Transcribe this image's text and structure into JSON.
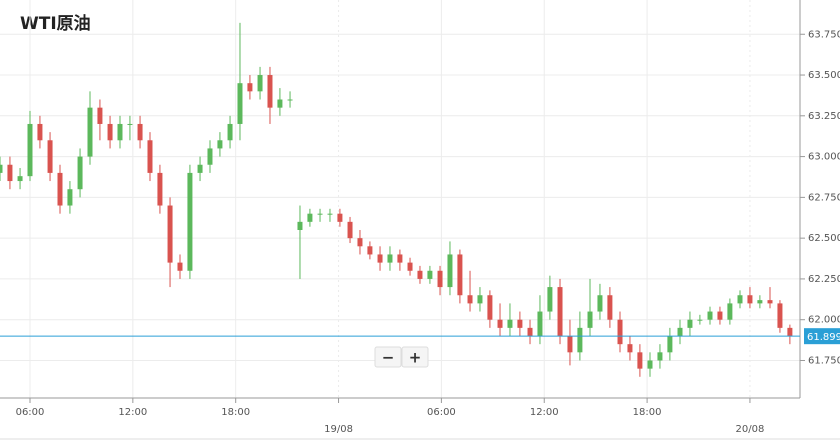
{
  "chart_data": {
    "type": "candlestick",
    "title": "WTI原油",
    "x": [
      4.25,
      4.83,
      5.42,
      6.0,
      6.58,
      7.17,
      7.75,
      8.33,
      8.92,
      9.5,
      10.08,
      10.67,
      11.25,
      11.83,
      12.42,
      13.0,
      13.58,
      14.17,
      14.75,
      15.33,
      15.92,
      16.5,
      17.08,
      17.67,
      18.25,
      18.83,
      19.42,
      20.0,
      20.58,
      21.17,
      21.75,
      22.33,
      22.92,
      23.5,
      24.08,
      24.67,
      25.25,
      25.83,
      26.42,
      27.0,
      27.58,
      28.17,
      28.75,
      29.33,
      29.92,
      30.5,
      31.08,
      31.67,
      32.25,
      32.83,
      33.42,
      34.0,
      34.58,
      35.17,
      35.75,
      36.33,
      36.92,
      37.5,
      38.08,
      38.67,
      39.25,
      39.83,
      40.42,
      41.0,
      41.58,
      42.17,
      42.75,
      43.33,
      43.92,
      44.5,
      45.08,
      45.67,
      46.25,
      46.83,
      47.42,
      48.0,
      48.58,
      49.17,
      49.75,
      50.33
    ],
    "open": [
      62.9,
      62.95,
      62.85,
      62.88,
      63.2,
      63.1,
      62.9,
      62.7,
      62.8,
      63.0,
      63.3,
      63.2,
      63.1,
      63.2,
      63.2,
      63.1,
      62.9,
      62.7,
      62.35,
      62.3,
      62.9,
      62.95,
      63.05,
      63.1,
      63.2,
      63.45,
      63.4,
      63.5,
      63.3,
      63.35,
      62.55,
      62.6,
      62.65,
      62.65,
      62.65,
      62.6,
      62.5,
      62.45,
      62.4,
      62.35,
      62.4,
      62.35,
      62.3,
      62.25,
      62.3,
      62.2,
      62.4,
      62.15,
      62.1,
      62.15,
      62.0,
      61.95,
      62.0,
      61.95,
      61.9,
      62.05,
      62.2,
      61.9,
      61.8,
      61.95,
      62.05,
      62.15,
      62.0,
      61.85,
      61.8,
      61.7,
      61.75,
      61.8,
      61.9,
      61.95,
      62.0,
      62.0,
      62.05,
      62.0,
      62.1,
      62.15,
      62.1,
      62.12,
      62.1,
      61.95
    ],
    "high": [
      63.0,
      63.0,
      62.93,
      63.28,
      63.25,
      63.15,
      62.95,
      62.85,
      63.05,
      63.4,
      63.35,
      63.25,
      63.25,
      63.25,
      63.25,
      63.15,
      62.95,
      62.75,
      62.4,
      62.95,
      63.0,
      63.1,
      63.15,
      63.25,
      63.82,
      63.5,
      63.55,
      63.55,
      63.42,
      63.4,
      62.7,
      62.68,
      62.68,
      62.68,
      62.68,
      62.63,
      62.55,
      62.48,
      62.45,
      62.45,
      62.43,
      62.38,
      62.33,
      62.33,
      62.33,
      62.48,
      62.43,
      62.3,
      62.2,
      62.18,
      62.1,
      62.1,
      62.05,
      62.0,
      62.15,
      62.27,
      62.25,
      62.0,
      62.05,
      62.25,
      62.22,
      62.2,
      62.05,
      61.9,
      61.85,
      61.8,
      61.85,
      61.95,
      62.0,
      62.05,
      62.03,
      62.08,
      62.08,
      62.13,
      62.18,
      62.2,
      62.15,
      62.2,
      62.12,
      61.97
    ],
    "low": [
      62.85,
      62.8,
      62.8,
      62.85,
      63.05,
      62.85,
      62.65,
      62.65,
      62.75,
      62.95,
      63.1,
      63.05,
      63.05,
      63.1,
      63.05,
      62.85,
      62.65,
      62.2,
      62.25,
      62.25,
      62.85,
      62.9,
      63.0,
      63.05,
      63.1,
      63.35,
      63.35,
      63.2,
      63.25,
      63.3,
      62.25,
      62.57,
      62.6,
      62.6,
      62.57,
      62.47,
      62.4,
      62.37,
      62.3,
      62.3,
      62.3,
      62.27,
      62.22,
      62.22,
      62.15,
      62.15,
      62.1,
      62.05,
      62.05,
      61.95,
      61.9,
      61.9,
      61.9,
      61.85,
      61.85,
      62.0,
      61.85,
      61.72,
      61.75,
      61.9,
      62.0,
      61.95,
      61.8,
      61.75,
      61.65,
      61.65,
      61.7,
      61.75,
      61.85,
      61.9,
      61.97,
      61.97,
      61.97,
      61.97,
      62.07,
      62.07,
      62.07,
      62.07,
      61.92,
      61.85
    ],
    "close": [
      62.95,
      62.85,
      62.88,
      63.2,
      63.1,
      62.9,
      62.7,
      62.8,
      63.0,
      63.3,
      63.2,
      63.1,
      63.2,
      63.2,
      63.1,
      62.9,
      62.7,
      62.35,
      62.3,
      62.9,
      62.95,
      63.05,
      63.1,
      63.2,
      63.45,
      63.4,
      63.5,
      63.3,
      63.35,
      63.35,
      62.6,
      62.65,
      62.65,
      62.65,
      62.6,
      62.5,
      62.45,
      62.4,
      62.35,
      62.4,
      62.35,
      62.3,
      62.25,
      62.3,
      62.2,
      62.4,
      62.15,
      62.1,
      62.15,
      62.0,
      61.95,
      62.0,
      61.95,
      61.9,
      62.05,
      62.2,
      61.9,
      61.8,
      61.95,
      62.05,
      62.15,
      62.0,
      61.85,
      61.8,
      61.7,
      61.75,
      61.8,
      61.9,
      61.95,
      62.0,
      62.0,
      62.05,
      62.0,
      62.1,
      62.15,
      62.1,
      62.12,
      62.1,
      61.95,
      61.9
    ],
    "up_color": "#5cb85c",
    "down_color": "#d9534f",
    "current_price": 61.899,
    "current_price_color": "#2a9fd6",
    "xlim": [
      4.25,
      50.92
    ],
    "xticks": [
      {
        "value": 6,
        "label": "06:00"
      },
      {
        "value": 12,
        "label": "12:00"
      },
      {
        "value": 18,
        "label": "18:00"
      },
      {
        "value": 24,
        "label": "19/08"
      },
      {
        "value": 30,
        "label": "06:00"
      },
      {
        "value": 36,
        "label": "12:00"
      },
      {
        "value": 42,
        "label": "18:00"
      },
      {
        "value": 48,
        "label": "20/08"
      }
    ],
    "ylim": [
      61.52,
      63.96
    ],
    "yticks": [
      {
        "value": 61.75,
        "label": "61.750"
      },
      {
        "value": 62.0,
        "label": "62.000"
      },
      {
        "value": 62.25,
        "label": "62.250"
      },
      {
        "value": 62.5,
        "label": "62.500"
      },
      {
        "value": 62.75,
        "label": "62.750"
      },
      {
        "value": 63.0,
        "label": "63.000"
      },
      {
        "value": 63.25,
        "label": "63.250"
      },
      {
        "value": 63.5,
        "label": "63.500"
      },
      {
        "value": 63.75,
        "label": "63.750"
      }
    ],
    "grid": true,
    "zoom_out": "−",
    "zoom_in": "+"
  }
}
